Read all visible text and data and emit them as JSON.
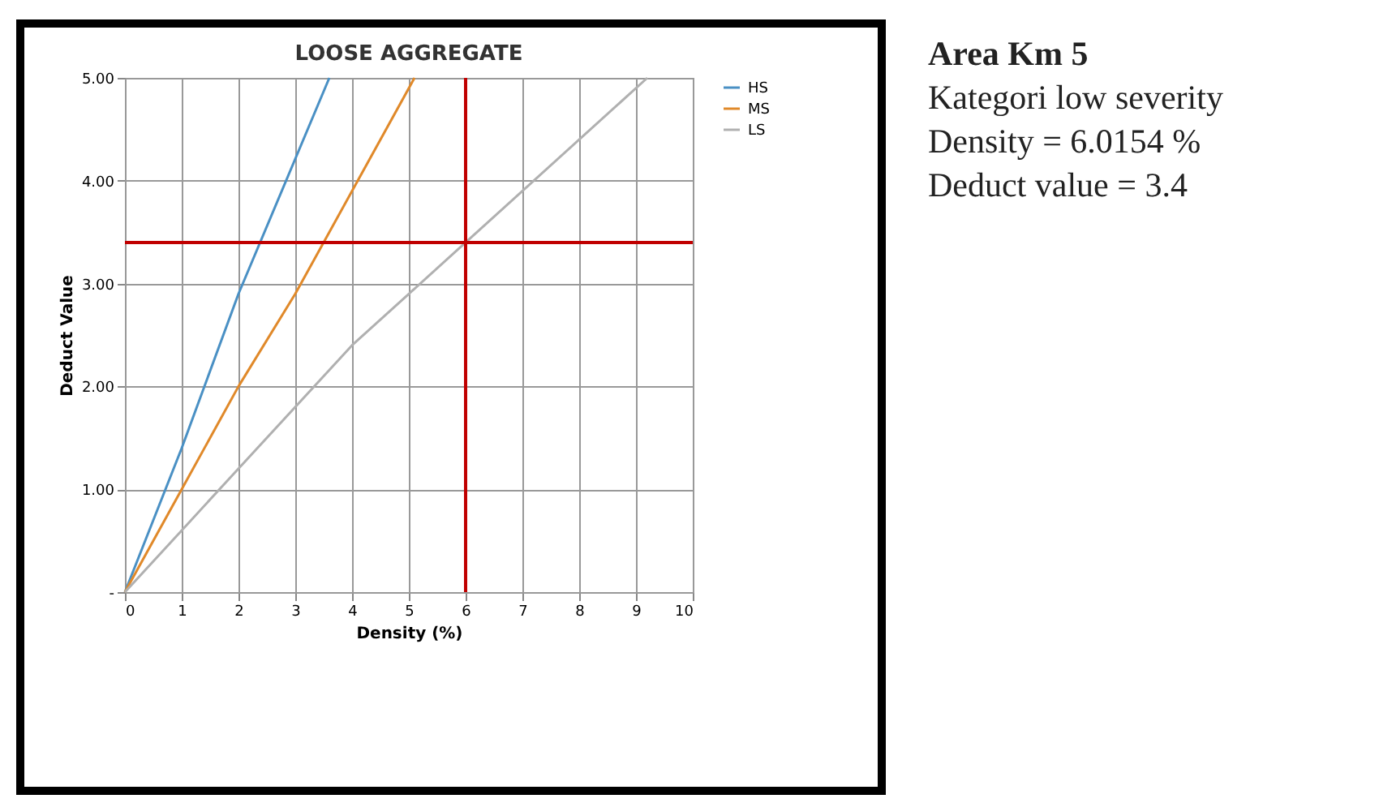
{
  "chart_data": {
    "type": "line",
    "title": "LOOSE AGGREGATE",
    "xlabel": "Density (%)",
    "ylabel": "Deduct Value",
    "xlim": [
      0,
      10
    ],
    "xticks": [
      0,
      1,
      2,
      3,
      4,
      5,
      6,
      7,
      8,
      9,
      10
    ],
    "ylim": [
      0,
      5
    ],
    "yticks": [
      {
        "value": 0,
        "label": "-"
      },
      {
        "value": 1,
        "label": "1.00"
      },
      {
        "value": 2,
        "label": "2.00"
      },
      {
        "value": 3,
        "label": "3.00"
      },
      {
        "value": 4,
        "label": "4.00"
      },
      {
        "value": 5,
        "label": "5.00"
      }
    ],
    "grid": true,
    "legend": "right",
    "marker": "none",
    "series": [
      {
        "name": "HS",
        "color": "#4a90c4",
        "x": [
          0,
          1,
          2,
          3.6
        ],
        "values": [
          0,
          1.4,
          2.9,
          5
        ]
      },
      {
        "name": "MS",
        "color": "#e0892a",
        "x": [
          0,
          1,
          2,
          3,
          5.1
        ],
        "values": [
          0,
          1,
          2,
          2.9,
          5
        ]
      },
      {
        "name": "LS",
        "color": "#b0b0b0",
        "x": [
          0,
          1,
          2,
          3,
          4,
          5,
          6,
          9.2
        ],
        "values": [
          0,
          0.6,
          1.2,
          1.8,
          2.4,
          2.9,
          3.4,
          5
        ]
      }
    ],
    "ref_lines": [
      {
        "axis": "x",
        "value": 6,
        "color": "#c00000"
      },
      {
        "axis": "y",
        "value": 3.4,
        "color": "#c00000"
      }
    ],
    "annotations": [
      "Area Km 5",
      "Kategori low severity",
      "Density = 6.0154 %",
      "Deduct value = 3.4"
    ]
  }
}
